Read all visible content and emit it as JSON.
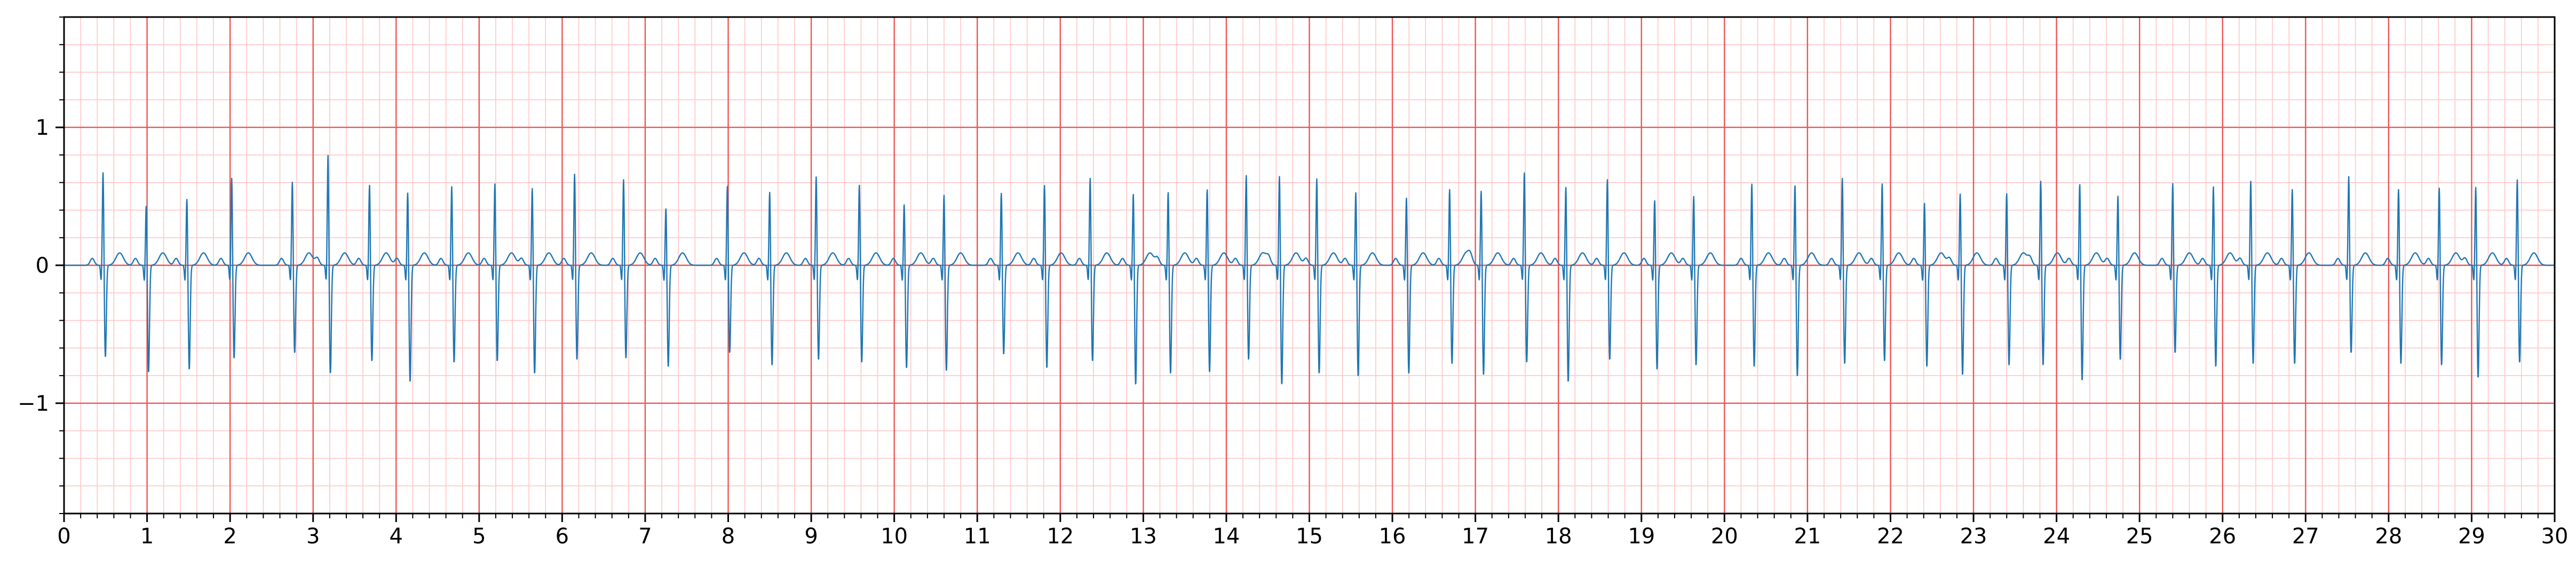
{
  "chart_data": {
    "type": "line",
    "title": "",
    "xlabel": "",
    "ylabel": "",
    "xlim": [
      0,
      30
    ],
    "ylim": [
      -1.8,
      1.8
    ],
    "x_ticks": [
      "0",
      "1",
      "2",
      "3",
      "4",
      "5",
      "6",
      "7",
      "8",
      "9",
      "10",
      "11",
      "12",
      "13",
      "14",
      "15",
      "16",
      "17",
      "18",
      "19",
      "20",
      "21",
      "22",
      "23",
      "24",
      "25",
      "26",
      "27",
      "28",
      "29",
      "30"
    ],
    "y_ticks": [
      {
        "value": 1,
        "label": "1"
      },
      {
        "value": 0,
        "label": "0"
      },
      {
        "value": -1,
        "label": "−1"
      }
    ],
    "grid": {
      "major_x_step": 1,
      "major_y_step": 1,
      "minor_x_step": 0.2,
      "minor_y_step": 0.2,
      "major_color": "#ee5555",
      "minor_color": "#ffc6c6"
    },
    "line_color": "#1f77b4",
    "series": [
      {
        "beats": [
          [
            0.47,
            0.7,
            -0.67
          ],
          [
            0.99,
            0.46,
            -0.78
          ],
          [
            1.48,
            0.51,
            -0.76
          ],
          [
            2.02,
            0.66,
            -0.68
          ],
          [
            2.75,
            0.63,
            -0.64
          ],
          [
            3.18,
            0.83,
            -0.79
          ],
          [
            3.68,
            0.61,
            -0.7
          ],
          [
            4.14,
            0.56,
            -0.85
          ],
          [
            4.67,
            0.6,
            -0.71
          ],
          [
            5.19,
            0.62,
            -0.7
          ],
          [
            5.64,
            0.59,
            -0.79
          ],
          [
            6.15,
            0.69,
            -0.69
          ],
          [
            6.74,
            0.65,
            -0.68
          ],
          [
            7.25,
            0.44,
            -0.74
          ],
          [
            7.99,
            0.6,
            -0.64
          ],
          [
            8.5,
            0.56,
            -0.73
          ],
          [
            9.06,
            0.67,
            -0.69
          ],
          [
            9.58,
            0.61,
            -0.71
          ],
          [
            10.12,
            0.47,
            -0.75
          ],
          [
            10.6,
            0.54,
            -0.77
          ],
          [
            11.29,
            0.55,
            -0.65
          ],
          [
            11.81,
            0.61,
            -0.75
          ],
          [
            12.36,
            0.66,
            -0.7
          ],
          [
            12.88,
            0.55,
            -0.87
          ],
          [
            13.3,
            0.56,
            -0.79
          ],
          [
            13.77,
            0.58,
            -0.78
          ],
          [
            14.24,
            0.68,
            -0.69
          ],
          [
            14.64,
            0.68,
            -0.87
          ],
          [
            15.09,
            0.66,
            -0.79
          ],
          [
            15.56,
            0.56,
            -0.81
          ],
          [
            16.17,
            0.52,
            -0.79
          ],
          [
            16.69,
            0.58,
            -0.72
          ],
          [
            17.07,
            0.57,
            -0.8
          ],
          [
            17.59,
            0.7,
            -0.71
          ],
          [
            18.09,
            0.6,
            -0.85
          ],
          [
            18.59,
            0.65,
            -0.69
          ],
          [
            19.16,
            0.5,
            -0.76
          ],
          [
            19.63,
            0.53,
            -0.73
          ],
          [
            20.33,
            0.62,
            -0.74
          ],
          [
            20.85,
            0.61,
            -0.81
          ],
          [
            21.42,
            0.66,
            -0.72
          ],
          [
            21.9,
            0.62,
            -0.7
          ],
          [
            22.41,
            0.48,
            -0.74
          ],
          [
            22.84,
            0.55,
            -0.8
          ],
          [
            23.4,
            0.55,
            -0.73
          ],
          [
            23.81,
            0.64,
            -0.73
          ],
          [
            24.28,
            0.62,
            -0.84
          ],
          [
            24.74,
            0.53,
            -0.69
          ],
          [
            25.4,
            0.62,
            -0.64
          ],
          [
            25.89,
            0.6,
            -0.74
          ],
          [
            26.34,
            0.64,
            -0.72
          ],
          [
            26.84,
            0.58,
            -0.72
          ],
          [
            27.52,
            0.67,
            -0.64
          ],
          [
            28.12,
            0.58,
            -0.72
          ],
          [
            28.61,
            0.59,
            -0.73
          ],
          [
            29.05,
            0.6,
            -0.82
          ],
          [
            29.55,
            0.65,
            -0.71
          ]
        ]
      }
    ]
  }
}
